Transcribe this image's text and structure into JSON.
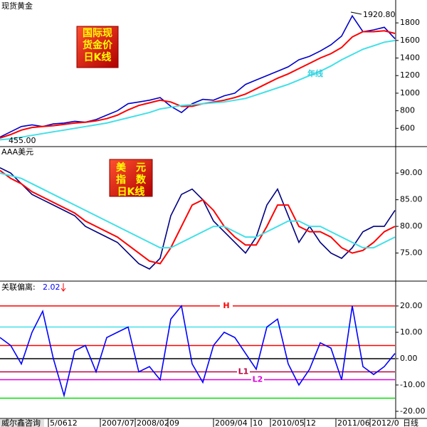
{
  "chart_data": [
    {
      "type": "line",
      "title": "现货黄金",
      "annotation_lines": [
        "国际现",
        "货金价",
        "日K线"
      ],
      "high_label": "1920.80",
      "low_label": "455.00",
      "ma_label": "年线",
      "ylim": [
        400,
        2020
      ],
      "yticks": [
        600,
        800,
        1000,
        1200,
        1400,
        1600,
        1800
      ],
      "series": [
        {
          "color": "#0000c8",
          "values": [
            500,
            560,
            620,
            640,
            620,
            650,
            660,
            680,
            670,
            700,
            750,
            800,
            880,
            900,
            920,
            950,
            850,
            780,
            880,
            930,
            920,
            970,
            1000,
            1100,
            1150,
            1200,
            1250,
            1300,
            1380,
            1420,
            1480,
            1550,
            1650,
            1880,
            1700,
            1720,
            1750,
            1620
          ]
        },
        {
          "color": "#ff0000",
          "values": [
            490,
            530,
            580,
            610,
            620,
            630,
            645,
            660,
            670,
            685,
            710,
            750,
            810,
            860,
            890,
            920,
            900,
            850,
            850,
            880,
            900,
            920,
            950,
            990,
            1050,
            1110,
            1170,
            1220,
            1280,
            1340,
            1400,
            1450,
            1520,
            1640,
            1700,
            1700,
            1710,
            1680
          ]
        },
        {
          "color": "#40e0e8",
          "values": [
            470,
            480,
            500,
            520,
            540,
            560,
            580,
            600,
            620,
            640,
            660,
            690,
            720,
            750,
            780,
            820,
            840,
            860,
            870,
            880,
            890,
            900,
            920,
            940,
            980,
            1020,
            1060,
            1100,
            1150,
            1200,
            1250,
            1310,
            1380,
            1440,
            1500,
            1540,
            1580,
            1600
          ]
        }
      ]
    },
    {
      "type": "line",
      "title": "AAA美元",
      "annotation_lines": [
        "美　元",
        "指　数",
        "日K线"
      ],
      "ylim": [
        70,
        94.7
      ],
      "yticks": [
        {
          "value": 75,
          "label": "75.00"
        },
        {
          "value": 80,
          "label": "80.00"
        },
        {
          "value": 85,
          "label": "85.00"
        },
        {
          "value": 90,
          "label": "90.00"
        }
      ],
      "series": [
        {
          "color": "#000080",
          "values": [
            91,
            90,
            88,
            86,
            85,
            84,
            83,
            82,
            80,
            79,
            78,
            77,
            75,
            73,
            72,
            74,
            82,
            86,
            87,
            85,
            81,
            79,
            77,
            75,
            78,
            84,
            87,
            82,
            77,
            80,
            77,
            75,
            74,
            76,
            79,
            80,
            80,
            83
          ]
        },
        {
          "color": "#ff0000",
          "values": [
            90.5,
            89,
            88,
            86.5,
            85.5,
            84.5,
            83.5,
            82.5,
            81,
            80,
            79,
            78,
            76.5,
            75,
            73.5,
            73,
            76,
            80,
            84,
            85,
            83,
            80,
            78,
            76.5,
            76.5,
            80,
            84,
            84,
            80,
            79,
            79,
            78,
            76,
            75,
            75.5,
            77,
            79,
            80
          ]
        },
        {
          "color": "#40e0e8",
          "values": [
            90,
            89.5,
            89,
            88,
            87,
            86,
            85,
            84,
            83,
            82,
            81,
            80,
            79,
            78,
            77,
            76,
            76,
            77,
            78,
            79,
            80,
            80,
            79,
            78,
            78,
            79,
            80,
            81,
            81,
            80,
            80,
            79,
            78,
            77,
            76,
            76,
            77,
            78
          ]
        }
      ]
    },
    {
      "type": "line",
      "title": "关联偏离:",
      "current_value": 2.02,
      "ylim": [
        -21.9,
        28.9
      ],
      "yticks": [
        {
          "value": -20,
          "label": "-20.00"
        },
        {
          "value": -10,
          "label": "-10.00"
        },
        {
          "value": 0,
          "label": "0.00"
        },
        {
          "value": 10,
          "label": "10.00"
        },
        {
          "value": 20,
          "label": "20.00"
        }
      ],
      "reference_lines": [
        {
          "value": 20,
          "color": "#ff0000",
          "label": "H"
        },
        {
          "value": 12,
          "color": "#40e0e8"
        },
        {
          "value": 5,
          "color": "#ff0000"
        },
        {
          "value": 0,
          "color": "#000000"
        },
        {
          "value": -5,
          "color": "#c00040",
          "label": "L1"
        },
        {
          "value": -8,
          "color": "#e000e0",
          "label": "L2"
        },
        {
          "value": -15,
          "color": "#00e000"
        }
      ],
      "series": [
        {
          "color": "#0000ff",
          "values": [
            8,
            5,
            -2,
            10,
            18,
            0,
            -14,
            3,
            5,
            -5,
            8,
            10,
            12,
            -5,
            -3,
            -8,
            15,
            20,
            -2,
            -9,
            5,
            10,
            8,
            2,
            -4,
            12,
            15,
            -2,
            -10,
            -4,
            6,
            4,
            -8,
            20,
            -3,
            -6,
            -3,
            2
          ]
        }
      ]
    }
  ],
  "footer": {
    "source": "威尔鑫咨询",
    "period": "日线",
    "date_labels": [
      "5/0612",
      "2007/07",
      "2008/02",
      "09",
      "2009/04",
      "10",
      "2010/05",
      "12",
      "2011/06",
      "2012/0"
    ]
  }
}
